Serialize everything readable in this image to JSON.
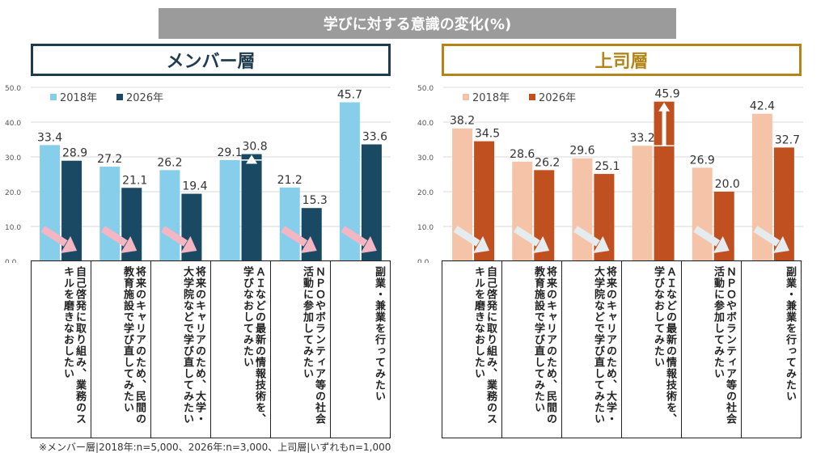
{
  "title": "学びに対する意識の変化(%)",
  "footnote": "※メンバー層|2018年:n=5,000、2026年:n=3,000、上司層|いずれもn=1,000",
  "chart_data": [
    {
      "type": "bar",
      "title": "メンバー層",
      "categories": [
        "自己啓発に取り組み、業務のスキルを磨きなおしたい",
        "将来のキャリアのため、民間の教育施設で学び直してみたい",
        "将来のキャリアのため、大学・大学院などで学び直してみたい",
        "ＡＩなどの最新の情報技術を、学びなおしてみたい",
        "ＮＰＯやボランティア等の社会活動に参加してみたい",
        "副業・兼業を行ってみたい"
      ],
      "series": [
        {
          "name": "2018年",
          "values": [
            33.4,
            27.2,
            26.2,
            29.1,
            21.2,
            45.7
          ],
          "color": "#87ceeb"
        },
        {
          "name": "2026年",
          "values": [
            28.9,
            21.1,
            19.4,
            30.8,
            15.3,
            33.6
          ],
          "color": "#1a4a63"
        }
      ],
      "yticks": [
        "0.0",
        "10.0",
        "20.0",
        "30.0",
        "40.0",
        "50.0"
      ],
      "ylim": [
        0,
        50
      ],
      "arrow_color": "#f4b6c2",
      "legend": "top-left"
    },
    {
      "type": "bar",
      "title": "上司層",
      "categories": [
        "自己啓発に取り組み、業務のスキルを磨きなおしたい",
        "将来のキャリアのため、民間の教育施設で学び直してみたい",
        "将来のキャリアのため、大学・大学院などで学び直してみたい",
        "ＡＩなどの最新の情報技術を、学びなおしてみたい",
        "ＮＰＯやボランティア等の社会活動に参加してみたい",
        "副業・兼業を行ってみたい"
      ],
      "series": [
        {
          "name": "2018年",
          "values": [
            38.2,
            28.6,
            29.6,
            33.2,
            26.9,
            42.4
          ],
          "color": "#f5c4a8"
        },
        {
          "name": "2026年",
          "values": [
            34.5,
            26.2,
            25.1,
            45.9,
            20.0,
            32.7
          ],
          "color": "#c0501f"
        }
      ],
      "yticks": [
        "0.0",
        "10.0",
        "20.0",
        "30.0",
        "40.0",
        "50.0"
      ],
      "ylim": [
        0,
        50
      ],
      "arrow_color": "#e4ecf0",
      "legend": "top-left"
    }
  ]
}
